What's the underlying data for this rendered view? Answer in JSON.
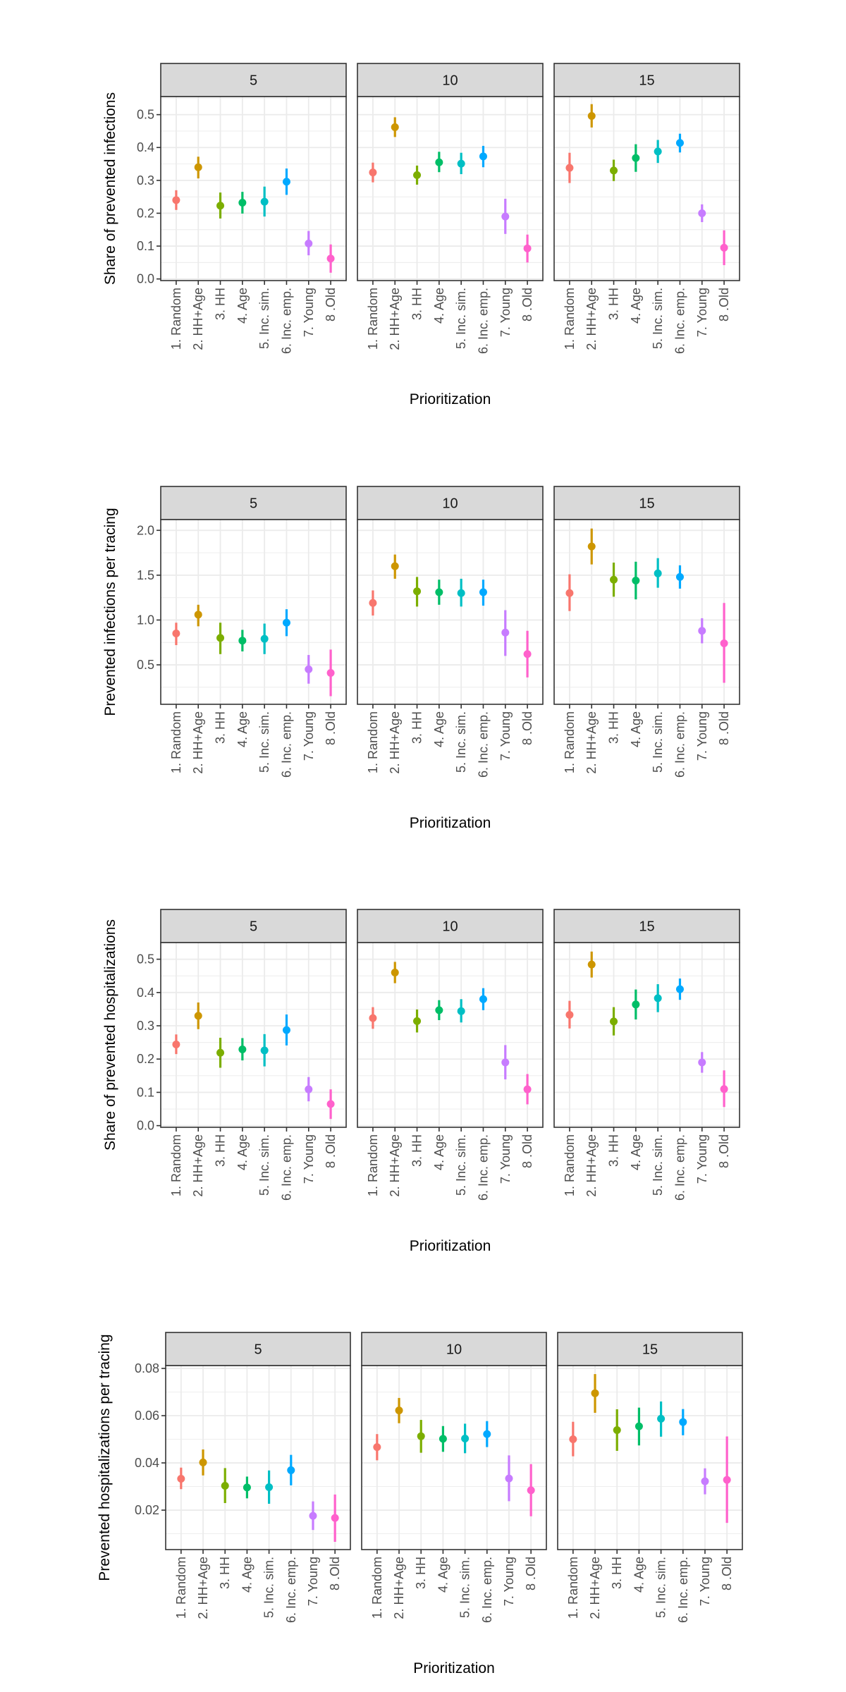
{
  "chart_data": [
    {
      "type": "scatter",
      "subtype": "pointrange",
      "title": "",
      "ylabel": "Share of prevented infections",
      "xlabel": "Prioritization",
      "facets": [
        "5",
        "10",
        "15"
      ],
      "categories": [
        "1. Random",
        "2. HH+Age",
        "3. HH",
        "4. Age",
        "5. Inc. sim.",
        "6. Inc. emp.",
        "7. Young",
        "8 .Old"
      ],
      "ylim": [
        -0.005,
        0.555
      ],
      "yticks": [
        0.0,
        0.1,
        0.2,
        0.3,
        0.4,
        0.5
      ],
      "ytick_labels": [
        "0.0",
        "0.1",
        "0.2",
        "0.3",
        "0.4",
        "0.5"
      ],
      "grid": true,
      "panels": [
        {
          "facet": "5",
          "values": [
            0.24,
            0.34,
            0.223,
            0.232,
            0.235,
            0.296,
            0.108,
            0.062
          ],
          "lower": [
            0.21,
            0.306,
            0.184,
            0.199,
            0.19,
            0.256,
            0.072,
            0.019
          ],
          "upper": [
            0.27,
            0.372,
            0.263,
            0.265,
            0.281,
            0.336,
            0.146,
            0.105
          ]
        },
        {
          "facet": "10",
          "values": [
            0.324,
            0.462,
            0.316,
            0.355,
            0.351,
            0.373,
            0.19,
            0.093
          ],
          "lower": [
            0.294,
            0.432,
            0.287,
            0.325,
            0.319,
            0.34,
            0.137,
            0.05
          ],
          "upper": [
            0.354,
            0.492,
            0.345,
            0.387,
            0.384,
            0.405,
            0.244,
            0.135
          ]
        },
        {
          "facet": "15",
          "values": [
            0.338,
            0.496,
            0.33,
            0.368,
            0.388,
            0.414,
            0.2,
            0.095
          ],
          "lower": [
            0.292,
            0.461,
            0.298,
            0.326,
            0.353,
            0.385,
            0.173,
            0.042
          ],
          "upper": [
            0.384,
            0.532,
            0.363,
            0.41,
            0.423,
            0.442,
            0.227,
            0.148
          ]
        }
      ]
    },
    {
      "type": "scatter",
      "subtype": "pointrange",
      "title": "",
      "ylabel": "Prevented infections per tracing",
      "xlabel": "Prioritization",
      "facets": [
        "5",
        "10",
        "15"
      ],
      "categories": [
        "1. Random",
        "2. HH+Age",
        "3. HH",
        "4. Age",
        "5. Inc. sim.",
        "6. Inc. emp.",
        "7. Young",
        "8 .Old"
      ],
      "ylim": [
        0.06,
        2.12
      ],
      "yticks": [
        0.5,
        1.0,
        1.5,
        2.0
      ],
      "ytick_labels": [
        "0.5",
        "1.0",
        "1.5",
        "2.0"
      ],
      "grid": true,
      "panels": [
        {
          "facet": "5",
          "values": [
            0.85,
            1.06,
            0.8,
            0.77,
            0.79,
            0.97,
            0.45,
            0.41
          ],
          "lower": [
            0.72,
            0.93,
            0.62,
            0.65,
            0.62,
            0.82,
            0.29,
            0.15
          ],
          "upper": [
            0.97,
            1.17,
            0.97,
            0.89,
            0.96,
            1.12,
            0.61,
            0.67
          ]
        },
        {
          "facet": "10",
          "values": [
            1.19,
            1.6,
            1.32,
            1.31,
            1.3,
            1.31,
            0.86,
            0.62
          ],
          "lower": [
            1.05,
            1.46,
            1.15,
            1.17,
            1.15,
            1.16,
            0.6,
            0.36
          ],
          "upper": [
            1.33,
            1.73,
            1.48,
            1.45,
            1.46,
            1.45,
            1.11,
            0.88
          ]
        },
        {
          "facet": "15",
          "values": [
            1.3,
            1.82,
            1.45,
            1.44,
            1.52,
            1.48,
            0.88,
            0.74
          ],
          "lower": [
            1.1,
            1.62,
            1.26,
            1.23,
            1.36,
            1.35,
            0.74,
            0.3
          ],
          "upper": [
            1.51,
            2.02,
            1.64,
            1.65,
            1.69,
            1.61,
            1.02,
            1.19
          ]
        }
      ]
    },
    {
      "type": "scatter",
      "subtype": "pointrange",
      "title": "",
      "ylabel": "Share of prevented hospitalizations",
      "xlabel": "Prioritization",
      "facets": [
        "5",
        "10",
        "15"
      ],
      "categories": [
        "1. Random",
        "2. HH+Age",
        "3. HH",
        "4. Age",
        "5. Inc. sim.",
        "6. Inc. emp.",
        "7. Young",
        "8 .Old"
      ],
      "ylim": [
        -0.005,
        0.55
      ],
      "yticks": [
        0.0,
        0.1,
        0.2,
        0.3,
        0.4,
        0.5
      ],
      "ytick_labels": [
        "0.0",
        "0.1",
        "0.2",
        "0.3",
        "0.4",
        "0.5"
      ],
      "grid": true,
      "panels": [
        {
          "facet": "5",
          "values": [
            0.244,
            0.33,
            0.219,
            0.229,
            0.226,
            0.287,
            0.109,
            0.065
          ],
          "lower": [
            0.215,
            0.29,
            0.174,
            0.196,
            0.178,
            0.241,
            0.073,
            0.02
          ],
          "upper": [
            0.274,
            0.37,
            0.264,
            0.263,
            0.275,
            0.334,
            0.146,
            0.109
          ]
        },
        {
          "facet": "10",
          "values": [
            0.323,
            0.46,
            0.314,
            0.347,
            0.344,
            0.38,
            0.19,
            0.109
          ],
          "lower": [
            0.291,
            0.428,
            0.28,
            0.317,
            0.31,
            0.347,
            0.139,
            0.064
          ],
          "upper": [
            0.356,
            0.492,
            0.349,
            0.377,
            0.38,
            0.413,
            0.242,
            0.155
          ]
        },
        {
          "facet": "15",
          "values": [
            0.333,
            0.484,
            0.313,
            0.364,
            0.383,
            0.41,
            0.19,
            0.11
          ],
          "lower": [
            0.292,
            0.445,
            0.271,
            0.319,
            0.341,
            0.378,
            0.159,
            0.056
          ],
          "upper": [
            0.375,
            0.523,
            0.356,
            0.409,
            0.425,
            0.442,
            0.221,
            0.166
          ]
        }
      ]
    },
    {
      "type": "scatter",
      "subtype": "pointrange",
      "title": "",
      "ylabel": "Prevented hospitalizations per tracing",
      "xlabel": "Prioritization",
      "facets": [
        "5",
        "10",
        "15"
      ],
      "categories": [
        "1. Random",
        "2. HH+Age",
        "3. HH",
        "4. Age",
        "5. Inc. sim.",
        "6. Inc. emp.",
        "7. Young",
        "8 .Old"
      ],
      "ylim": [
        0.0033,
        0.0812
      ],
      "yticks": [
        0.02,
        0.04,
        0.06,
        0.08
      ],
      "ytick_labels": [
        "0.02",
        "0.04",
        "0.06",
        "0.08"
      ],
      "grid": true,
      "panels": [
        {
          "facet": "5",
          "values": [
            0.0333,
            0.0402,
            0.0303,
            0.0296,
            0.0297,
            0.0369,
            0.0176,
            0.0167
          ],
          "lower": [
            0.0289,
            0.0347,
            0.023,
            0.025,
            0.0227,
            0.0305,
            0.0116,
            0.0066
          ],
          "upper": [
            0.038,
            0.0457,
            0.0378,
            0.0342,
            0.0368,
            0.0434,
            0.0237,
            0.0266
          ]
        },
        {
          "facet": "10",
          "values": [
            0.0467,
            0.0622,
            0.0513,
            0.0502,
            0.0503,
            0.0522,
            0.0334,
            0.0284
          ],
          "lower": [
            0.0411,
            0.0568,
            0.0443,
            0.0447,
            0.0441,
            0.0467,
            0.0238,
            0.0174
          ],
          "upper": [
            0.0522,
            0.0675,
            0.0582,
            0.0556,
            0.0566,
            0.0577,
            0.0432,
            0.0395
          ]
        },
        {
          "facet": "15",
          "values": [
            0.05,
            0.0695,
            0.0539,
            0.0555,
            0.0587,
            0.0573,
            0.0322,
            0.0328
          ],
          "lower": [
            0.0428,
            0.0612,
            0.0451,
            0.0474,
            0.0511,
            0.0517,
            0.0267,
            0.0146
          ],
          "upper": [
            0.0574,
            0.0776,
            0.0627,
            0.0634,
            0.066,
            0.0628,
            0.0377,
            0.0512
          ]
        }
      ]
    }
  ],
  "colors": [
    "#F8766D",
    "#CD9600",
    "#7CAE00",
    "#00BE67",
    "#00BFC4",
    "#00A9FF",
    "#C77CFF",
    "#FF61CC"
  ]
}
